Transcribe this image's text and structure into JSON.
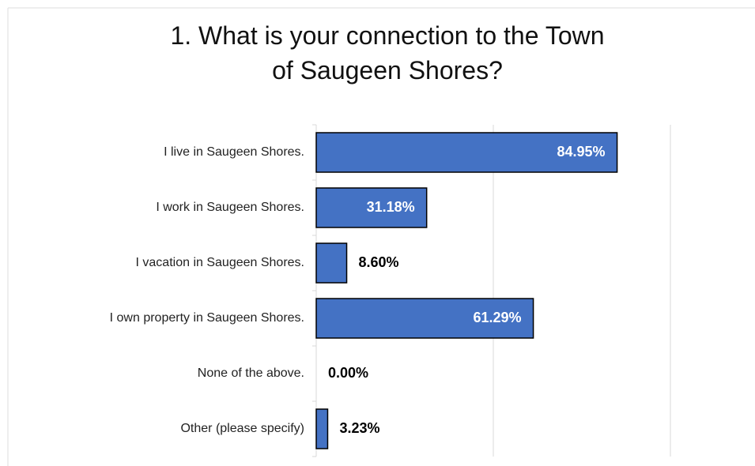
{
  "chart_data": {
    "type": "hbar",
    "title": "1. What is your connection to the Town of Saugeen Shores?",
    "categories": [
      "I live in Saugeen Shores.",
      "I work in Saugeen Shores.",
      "I vacation in Saugeen Shores.",
      "I own property in Saugeen Shores.",
      "None of the above.",
      "Other (please specify)"
    ],
    "values": [
      84.95,
      31.18,
      8.6,
      61.29,
      0.0,
      3.23
    ],
    "value_labels": [
      "84.95%",
      "31.18%",
      "8.60%",
      "61.29%",
      "0.00%",
      "3.23%"
    ],
    "color": "#4472c4",
    "xlim": [
      0,
      100
    ],
    "xticks": [
      0,
      50,
      100
    ],
    "grid": true
  }
}
